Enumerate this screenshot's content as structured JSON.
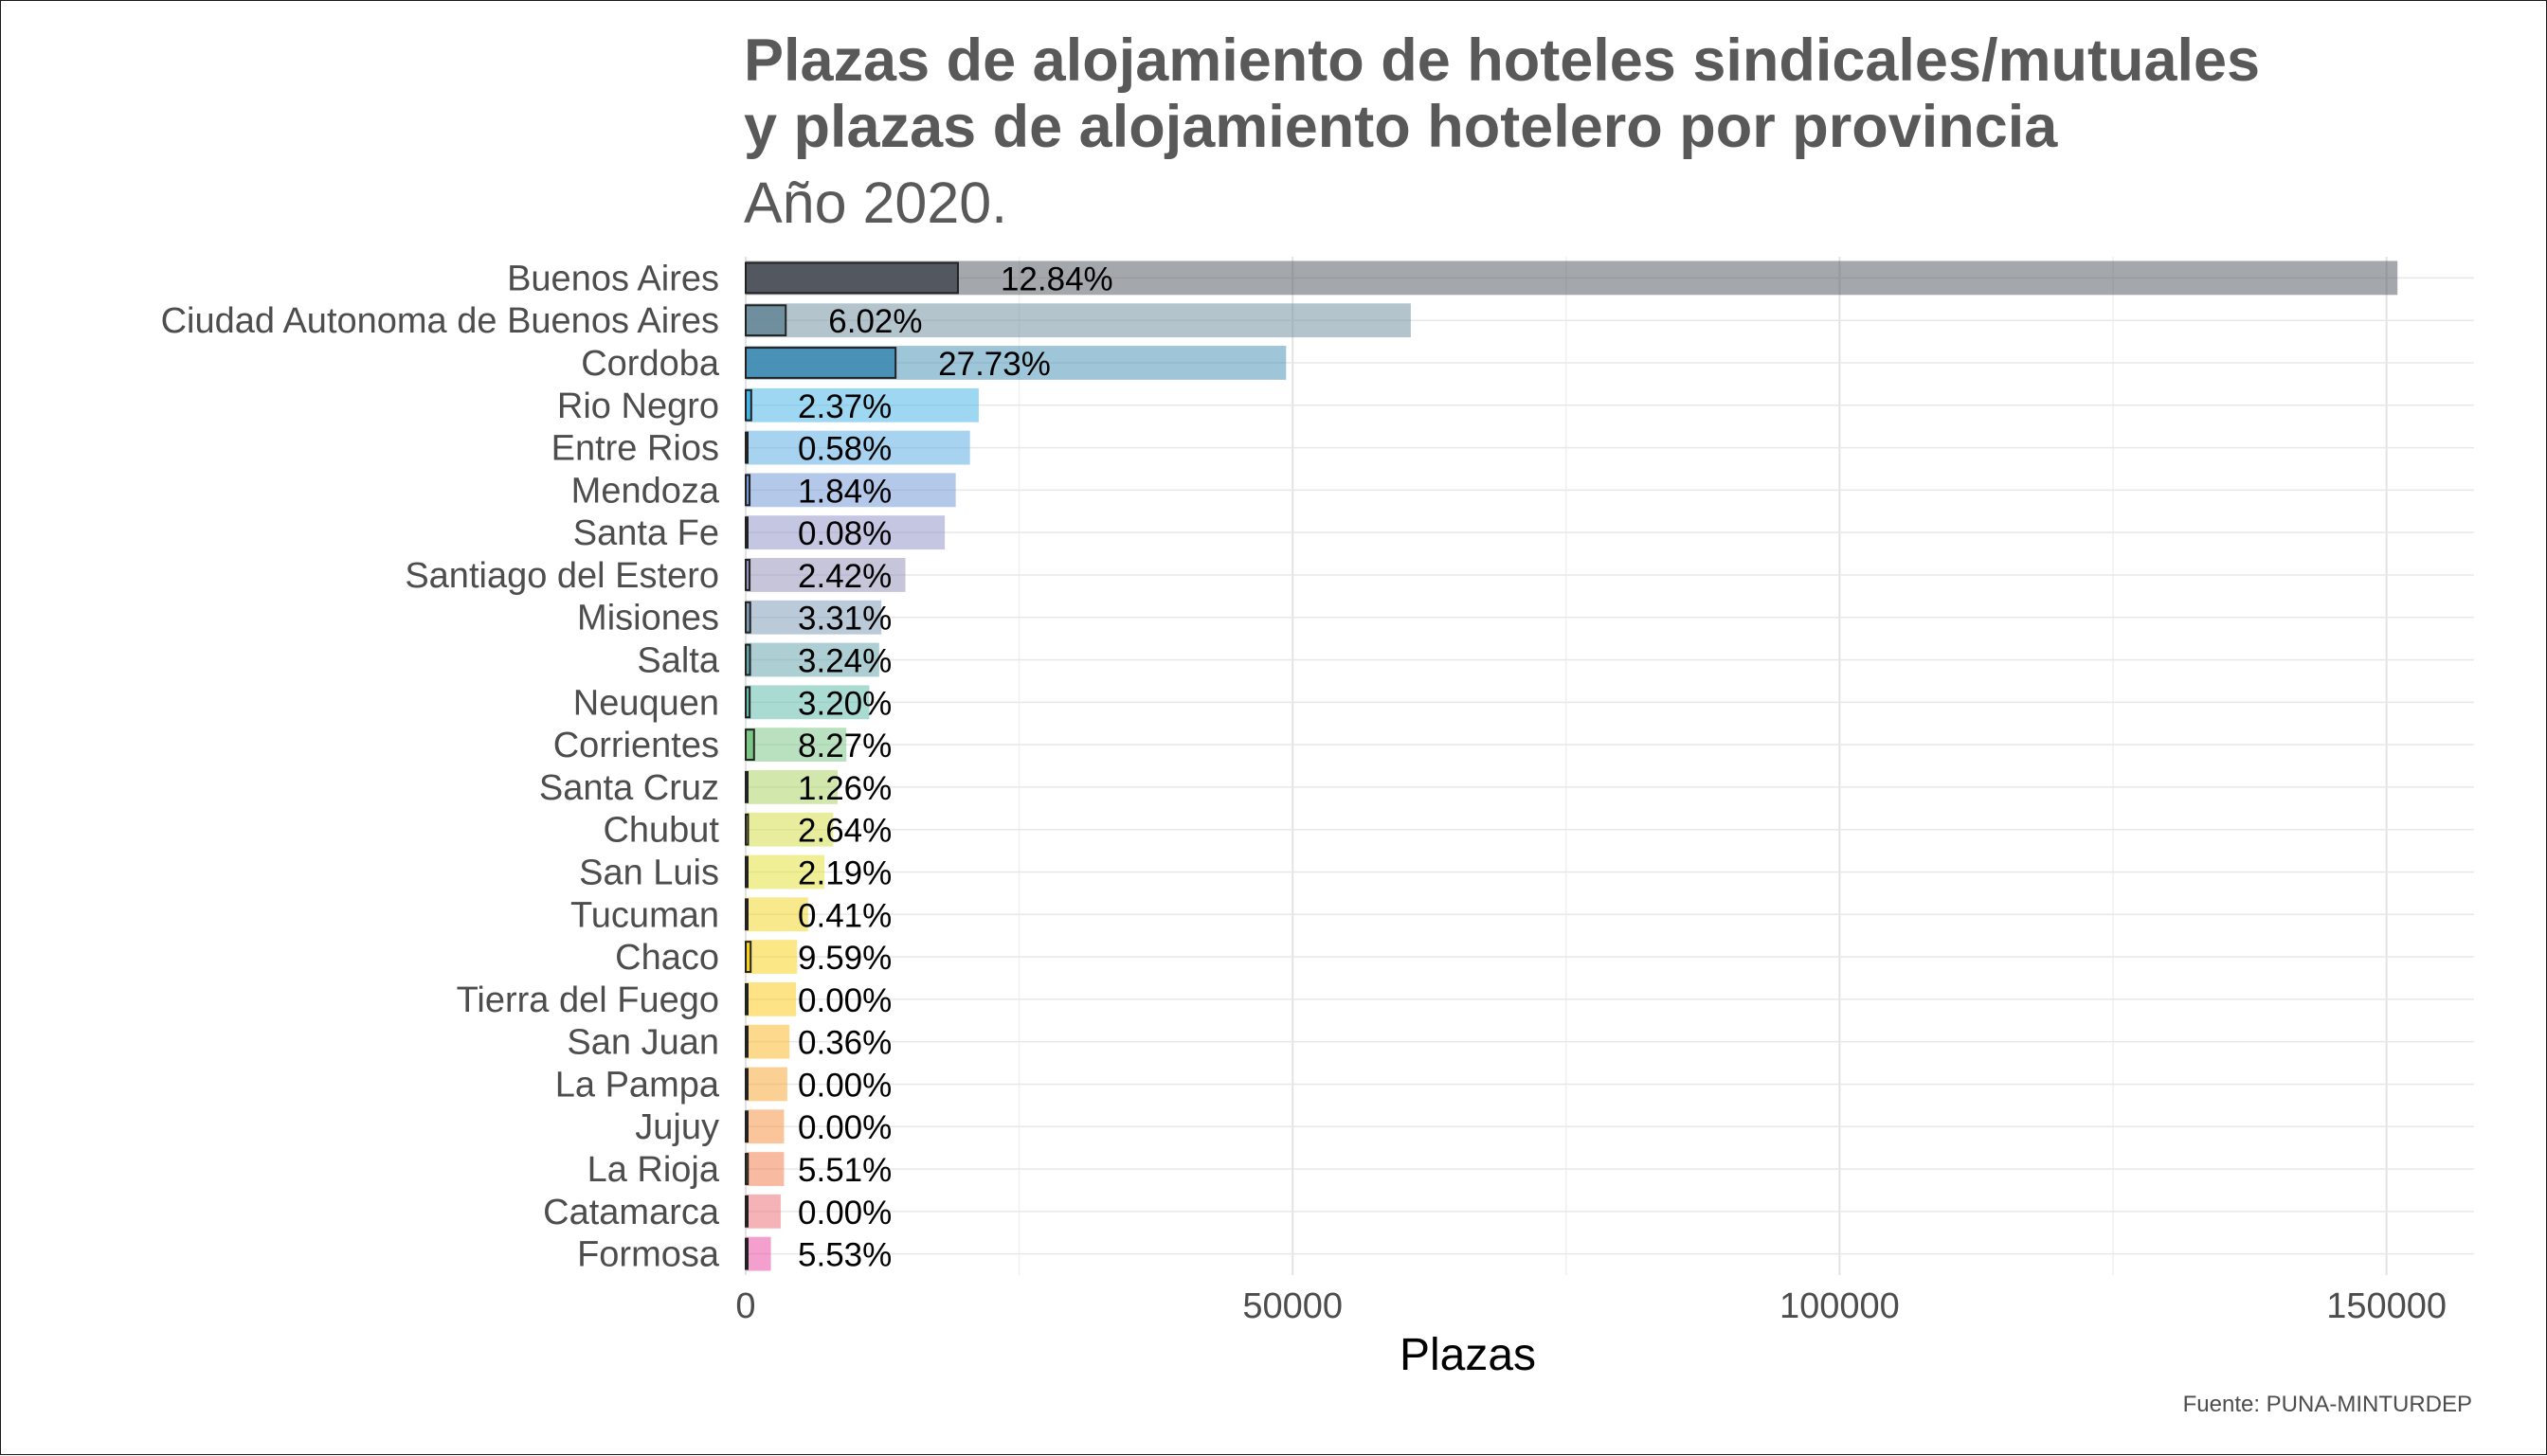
{
  "title": "Plazas de alojamiento de hoteles sindicales/mutuales\ny plazas de alojamiento hotelero por provincia",
  "subtitle": "Año 2020.",
  "caption": "Fuente: PUNA-MINTURDEP",
  "chart_data": {
    "type": "bar",
    "orientation": "horizontal",
    "xlabel": "Plazas",
    "ylabel": "",
    "xlim": [
      0,
      158000
    ],
    "xticks": [
      0,
      50000,
      100000,
      150000
    ],
    "grid": true,
    "legend": "none",
    "categories": [
      "Buenos Aires",
      "Ciudad Autonoma de Buenos Aires",
      "Cordoba",
      "Rio Negro",
      "Entre Rios",
      "Mendoza",
      "Santa Fe",
      "Santiago del Estero",
      "Misiones",
      "Salta",
      "Neuquen",
      "Corrientes",
      "Santa Cruz",
      "Chubut",
      "San Luis",
      "Tucuman",
      "Chaco",
      "Tierra del Fuego",
      "San Juan",
      "La Pampa",
      "Jujuy",
      "La Rioja",
      "Catamarca",
      "Formosa"
    ],
    "series": [
      {
        "values": [
          151000,
          60800,
          49400,
          21300,
          20500,
          19200,
          18200,
          14600,
          12400,
          12200,
          11300,
          9200,
          8400,
          8000,
          7200,
          5700,
          4700,
          4600,
          4000,
          3800,
          3500,
          3500,
          3200,
          2300
        ]
      },
      {
        "values": [
          19400,
          3660,
          13700,
          505,
          119,
          353,
          15,
          353,
          410,
          395,
          362,
          761,
          106,
          211,
          158,
          23,
          451,
          0,
          14,
          0,
          0,
          193,
          0,
          127
        ]
      }
    ],
    "labels": [
      "12.84%",
      "6.02%",
      "27.73%",
      "2.37%",
      "0.58%",
      "1.84%",
      "0.08%",
      "2.42%",
      "3.31%",
      "3.24%",
      "3.20%",
      "8.27%",
      "1.26%",
      "2.64%",
      "2.19%",
      "0.41%",
      "9.59%",
      "0.00%",
      "0.36%",
      "0.00%",
      "0.00%",
      "5.51%",
      "0.00%",
      "5.53%"
    ],
    "colors": [
      "#4a4f58",
      "#67899a",
      "#3f8bb3",
      "#3bb0e6",
      "#4fa8e2",
      "#6a93d3",
      "#8a8ec6",
      "#8e8cb6",
      "#7595b2",
      "#5b9ea6",
      "#55b8a6",
      "#76c47f",
      "#a6cf5a",
      "#cfdc3b",
      "#e2df2d",
      "#f2d619",
      "#f8cf0c",
      "#fcc80d",
      "#f9b41a",
      "#f8a12a",
      "#f68b36",
      "#f27746",
      "#ee6770",
      "#e8419d"
    ]
  }
}
